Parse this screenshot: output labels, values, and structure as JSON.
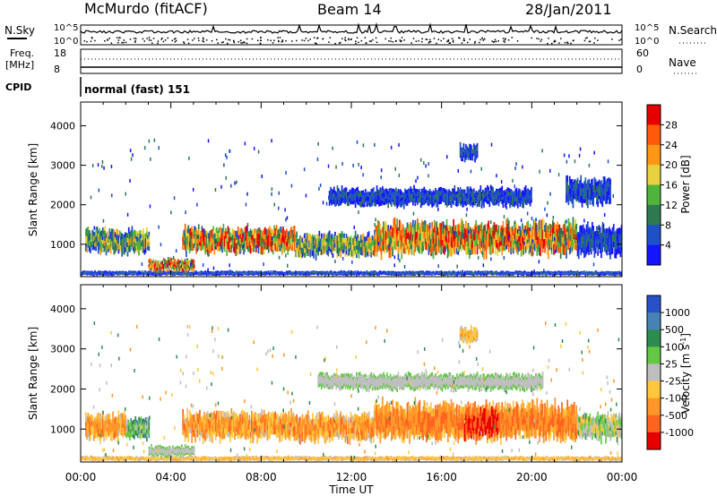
{
  "header": {
    "station": "McMurdo (fitACF)",
    "beam": "Beam 14",
    "date": "28/Jan/2011"
  },
  "panels": {
    "nsky_label": "N.Sky",
    "nsearch_label": "N.Search",
    "freq_label_line1": "Freq.",
    "freq_label_line2": "[MHz]",
    "nave_label": "Nave",
    "cpid_label": "CPID",
    "cpid_value": "normal (fast) 151",
    "noise_left_ticks": [
      "10^5",
      "10^0"
    ],
    "noise_right_ticks": [
      "10^5",
      "10^0"
    ],
    "freq_ticks": [
      "18",
      "8"
    ],
    "nave_ticks": [
      "60",
      "0"
    ]
  },
  "chart_data": [
    {
      "type": "heatmap",
      "panel": "power",
      "ylabel": "Slant Range [km]",
      "xlabel": "",
      "yticks": [
        1000,
        2000,
        3000,
        4000
      ],
      "ylim": [
        180,
        4600
      ],
      "xlim": [
        0,
        24
      ],
      "xtick_labels": [
        "00:00",
        "04:00",
        "08:00",
        "12:00",
        "16:00",
        "20:00",
        "00:00"
      ],
      "colorbar": {
        "label": "Power [dB]",
        "ticks": [
          "4",
          "8",
          "12",
          "16",
          "20",
          "24",
          "28"
        ],
        "range": [
          0,
          30
        ],
        "colors": [
          "#1414ff",
          "#1e50c8",
          "#2d7a50",
          "#50b43c",
          "#e6d23c",
          "#ff9614",
          "#ff5a0a",
          "#e60000"
        ]
      },
      "features": [
        {
          "t_start": 0.0,
          "t_end": 24.0,
          "r_min": 200,
          "r_max": 330,
          "level": "weak-scatter"
        },
        {
          "t_start": 0.2,
          "t_end": 3.0,
          "r_min": 750,
          "r_max": 1400,
          "level": "moderate"
        },
        {
          "t_start": 3.0,
          "t_end": 5.0,
          "r_min": 300,
          "r_max": 650,
          "level": "strong"
        },
        {
          "t_start": 4.5,
          "t_end": 9.5,
          "r_min": 750,
          "r_max": 1450,
          "level": "strong"
        },
        {
          "t_start": 9.5,
          "t_end": 13.0,
          "r_min": 650,
          "r_max": 1300,
          "level": "moderate"
        },
        {
          "t_start": 13.0,
          "t_end": 22.0,
          "r_min": 700,
          "r_max": 1600,
          "level": "strong"
        },
        {
          "t_start": 22.0,
          "t_end": 24.0,
          "r_min": 700,
          "r_max": 1500,
          "level": "weak"
        },
        {
          "t_start": 11.0,
          "t_end": 20.0,
          "r_min": 1950,
          "r_max": 2450,
          "level": "weak"
        },
        {
          "t_start": 21.5,
          "t_end": 23.5,
          "r_min": 1950,
          "r_max": 2700,
          "level": "weak"
        },
        {
          "t_start": 16.8,
          "t_end": 17.6,
          "r_min": 3100,
          "r_max": 3550,
          "level": "weak"
        }
      ]
    },
    {
      "type": "heatmap",
      "panel": "velocity",
      "ylabel": "Slant Range [km]",
      "xlabel": "Time UT",
      "yticks": [
        1000,
        2000,
        3000,
        4000
      ],
      "ylim": [
        180,
        4600
      ],
      "xlim": [
        0,
        24
      ],
      "xtick_labels": [
        "00:00",
        "04:00",
        "08:00",
        "12:00",
        "16:00",
        "20:00",
        "00:00"
      ],
      "colorbar": {
        "label": "Velocity [m s^-1]",
        "ticks": [
          "1000",
          "500",
          "100",
          "25",
          "-25",
          "-100",
          "-500",
          "-1000"
        ],
        "range": [
          -1250,
          1250
        ],
        "colors": [
          "#2850c8",
          "#4682b4",
          "#2d8c50",
          "#64c846",
          "#bebebe",
          "#ffc83c",
          "#ff9628",
          "#ff641e",
          "#e60000"
        ]
      },
      "features": [
        {
          "t_start": 0.0,
          "t_end": 24.0,
          "r_min": 200,
          "r_max": 330,
          "level": "yellow"
        },
        {
          "t_start": 0.2,
          "t_end": 2.0,
          "r_min": 700,
          "r_max": 1400,
          "level": "orange"
        },
        {
          "t_start": 2.0,
          "t_end": 3.0,
          "r_min": 750,
          "r_max": 1300,
          "level": "green"
        },
        {
          "t_start": 3.0,
          "t_end": 5.0,
          "r_min": 300,
          "r_max": 600,
          "level": "grey"
        },
        {
          "t_start": 4.5,
          "t_end": 9.5,
          "r_min": 700,
          "r_max": 1450,
          "level": "orange"
        },
        {
          "t_start": 9.5,
          "t_end": 13.0,
          "r_min": 650,
          "r_max": 1400,
          "level": "orange"
        },
        {
          "t_start": 13.0,
          "t_end": 22.0,
          "r_min": 700,
          "r_max": 1700,
          "level": "orange-red"
        },
        {
          "t_start": 17.0,
          "t_end": 18.5,
          "r_min": 700,
          "r_max": 1500,
          "level": "red"
        },
        {
          "t_start": 22.0,
          "t_end": 24.0,
          "r_min": 700,
          "r_max": 1400,
          "level": "green-yellow"
        },
        {
          "t_start": 10.5,
          "t_end": 20.5,
          "r_min": 1950,
          "r_max": 2400,
          "level": "grey"
        },
        {
          "t_start": 16.8,
          "t_end": 17.6,
          "r_min": 3100,
          "r_max": 3550,
          "level": "yellow"
        }
      ]
    }
  ]
}
